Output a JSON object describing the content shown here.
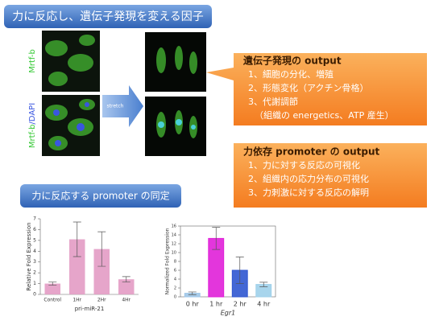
{
  "header": {
    "title": "力に反応し、遺伝子発現を変える因子"
  },
  "figure": {
    "label_top": "Mrtf-b",
    "label_bottom": [
      "Mrtf-b",
      "/DAPI"
    ],
    "arrow": "stretch"
  },
  "callouts": [
    {
      "title": "遺伝子発現の output",
      "lines": [
        "1、細胞の分化、増殖",
        "2、形態変化（アクチン骨格）",
        "3、代謝調節",
        "（組織の energetics、ATP 産生）"
      ]
    },
    {
      "title": "力依存 promoter の output",
      "lines": [
        "1、力に対する反応の可視化",
        "2、組織内の応力分布の可視化",
        "3、力刺激に対する反応の解明"
      ]
    }
  ],
  "subheader": {
    "title": "力に反応する promoter の同定"
  },
  "chart_data": [
    {
      "type": "bar",
      "ylabel": "Relative Fold Expression",
      "xlabel": "pri-miR-21",
      "categories": [
        "Control",
        "1Hr",
        "2Hr",
        "4Hr"
      ],
      "values": [
        1.0,
        5.1,
        4.2,
        1.4
      ],
      "errors": [
        0.15,
        1.6,
        1.6,
        0.25
      ],
      "color": "#e39bc4",
      "ylim": [
        0,
        7
      ],
      "yticks": [
        0,
        1,
        2,
        3,
        4,
        5,
        6,
        7
      ]
    },
    {
      "type": "bar",
      "ylabel": "Normalized Fold Expression",
      "xlabel": "Egr1",
      "categories": [
        "0 hr",
        "1 hr",
        "2 hr",
        "4 hr"
      ],
      "values": [
        0.8,
        13.2,
        6.0,
        2.8
      ],
      "errors": [
        0.3,
        2.5,
        3.0,
        0.5
      ],
      "colors": [
        "#9fc6e8",
        "#e020d8",
        "#2f56d0",
        "#9fd0ea"
      ],
      "ylim": [
        0,
        16
      ],
      "yticks": [
        0,
        2,
        4,
        6,
        8,
        10,
        12,
        14,
        16
      ],
      "frame": true
    }
  ]
}
